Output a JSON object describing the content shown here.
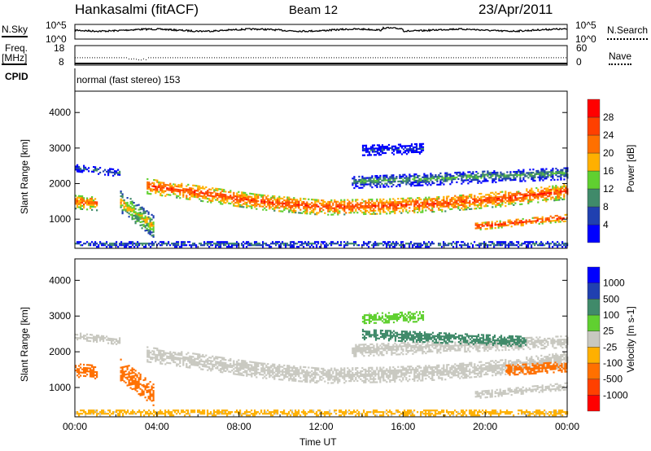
{
  "header": {
    "station": "Hankasalmi (fitACF)",
    "beam": "Beam 12",
    "date": "23/Apr/2011"
  },
  "noise_panel": {
    "left_label": "N.Sky",
    "right_label": "N.Search",
    "left_ticks": [
      "10^5",
      "10^0"
    ],
    "right_ticks": [
      "10^5",
      "10^0"
    ]
  },
  "freq_panel": {
    "left_label_1": "Freq.",
    "left_label_2": "[MHz]",
    "right_label": "Nave",
    "left_ticks": [
      "18",
      "8"
    ],
    "right_ticks": [
      "60",
      "0"
    ],
    "freq_mhz": 12,
    "nave": 0.5
  },
  "cpid": {
    "label": "CPID",
    "value": "normal (fast stereo) 153"
  },
  "xaxis": {
    "label": "Time UT",
    "ticks": [
      "00:00",
      "04:00",
      "08:00",
      "12:00",
      "16:00",
      "20:00",
      "00:00"
    ]
  },
  "chart_data": [
    {
      "type": "heatmap",
      "name": "power",
      "ylabel": "Slant Range [km]",
      "yticks": [
        "1000",
        "2000",
        "3000",
        "4000"
      ],
      "ylim": [
        180,
        4600
      ],
      "xlim": [
        0,
        24
      ],
      "colorbar": {
        "label": "Power [dB]",
        "ticks": [
          "28",
          "24",
          "20",
          "16",
          "12",
          "8",
          "4"
        ],
        "colors": [
          "#0000ff",
          "#2040b0",
          "#408a6a",
          "#60d030",
          "#ffb000",
          "#ff7000",
          "#ff4000",
          "#ff0000"
        ]
      },
      "echo_regions": [
        {
          "t": [
            3.5,
            24
          ],
          "range_curve": [
            [
              3.5,
              1950
            ],
            [
              6,
              1750
            ],
            [
              9,
              1500
            ],
            [
              12,
              1350
            ],
            [
              15,
              1380
            ],
            [
              18,
              1450
            ],
            [
              21,
              1600
            ],
            [
              24,
              1800
            ]
          ],
          "width": 450,
          "value": 26
        },
        {
          "t": [
            19.5,
            24
          ],
          "range_curve": [
            [
              19.5,
              800
            ],
            [
              24,
              1050
            ]
          ],
          "width": 200,
          "value": 28
        },
        {
          "t": [
            13.5,
            24
          ],
          "range_curve": [
            [
              13.5,
              2050
            ],
            [
              24,
              2300
            ]
          ],
          "width": 350,
          "value": 12
        },
        {
          "t": [
            0,
            1.1
          ],
          "range_curve": [
            [
              0,
              1500
            ],
            [
              1.1,
              1450
            ]
          ],
          "width": 400,
          "value": 24
        },
        {
          "t": [
            0,
            2.2
          ],
          "range_curve": [
            [
              0,
              2450
            ],
            [
              2.2,
              2300
            ]
          ],
          "width": 200,
          "value": 9
        },
        {
          "t": [
            2.2,
            3.8
          ],
          "range_curve": [
            [
              2.2,
              1500
            ],
            [
              3.8,
              800
            ]
          ],
          "width": 600,
          "value": 18
        },
        {
          "t": [
            14,
            17
          ],
          "range_curve": [
            [
              14,
              2950
            ],
            [
              17,
              3000
            ]
          ],
          "width": 300,
          "value": 6
        },
        {
          "t": [
            0,
            24
          ],
          "range_curve": [
            [
              0,
              300
            ],
            [
              24,
              300
            ]
          ],
          "width": 150,
          "value": 10
        }
      ]
    },
    {
      "type": "heatmap",
      "name": "velocity",
      "ylabel": "Slant Range [km]",
      "yticks": [
        "1000",
        "2000",
        "3000",
        "4000"
      ],
      "ylim": [
        180,
        4600
      ],
      "xlim": [
        0,
        24
      ],
      "colorbar": {
        "label": "Velocity [m s-1]",
        "ticks": [
          "1000",
          "500",
          "100",
          "25",
          "-25",
          "-100",
          "-500",
          "-1000"
        ],
        "colors": [
          "#ff0000",
          "#ff4000",
          "#ff7000",
          "#ffb000",
          "#c8c8c0",
          "#60d030",
          "#408a6a",
          "#2040b0",
          "#0000ff"
        ]
      },
      "echo_regions": [
        {
          "t": [
            3.5,
            24
          ],
          "range_curve": [
            [
              3.5,
              1950
            ],
            [
              6,
              1750
            ],
            [
              9,
              1500
            ],
            [
              12,
              1350
            ],
            [
              15,
              1380
            ],
            [
              18,
              1450
            ],
            [
              21,
              1600
            ],
            [
              24,
              1800
            ]
          ],
          "width": 450,
          "value": 0
        },
        {
          "t": [
            19.5,
            24
          ],
          "range_curve": [
            [
              19.5,
              800
            ],
            [
              24,
              1050
            ]
          ],
          "width": 200,
          "value": 0
        },
        {
          "t": [
            21,
            24
          ],
          "range_curve": [
            [
              21,
              1500
            ],
            [
              24,
              1600
            ]
          ],
          "width": 300,
          "value": -300
        },
        {
          "t": [
            13.5,
            24
          ],
          "range_curve": [
            [
              13.5,
              2050
            ],
            [
              24,
              2300
            ]
          ],
          "width": 350,
          "value": 0
        },
        {
          "t": [
            14,
            22
          ],
          "range_curve": [
            [
              14,
              2500
            ],
            [
              22,
              2300
            ]
          ],
          "width": 300,
          "value": 300
        },
        {
          "t": [
            0,
            1.1
          ],
          "range_curve": [
            [
              0,
              1500
            ],
            [
              1.1,
              1450
            ]
          ],
          "width": 400,
          "value": -300
        },
        {
          "t": [
            0,
            2.2
          ],
          "range_curve": [
            [
              0,
              2450
            ],
            [
              2.2,
              2300
            ]
          ],
          "width": 200,
          "value": 0
        },
        {
          "t": [
            2.2,
            3.8
          ],
          "range_curve": [
            [
              2.2,
              1500
            ],
            [
              3.8,
              800
            ]
          ],
          "width": 600,
          "value": -300
        },
        {
          "t": [
            14,
            17
          ],
          "range_curve": [
            [
              14,
              2950
            ],
            [
              17,
              3000
            ]
          ],
          "width": 300,
          "value": 60
        },
        {
          "t": [
            0,
            24
          ],
          "range_curve": [
            [
              0,
              300
            ],
            [
              24,
              300
            ]
          ],
          "width": 150,
          "value": -50
        }
      ]
    }
  ]
}
